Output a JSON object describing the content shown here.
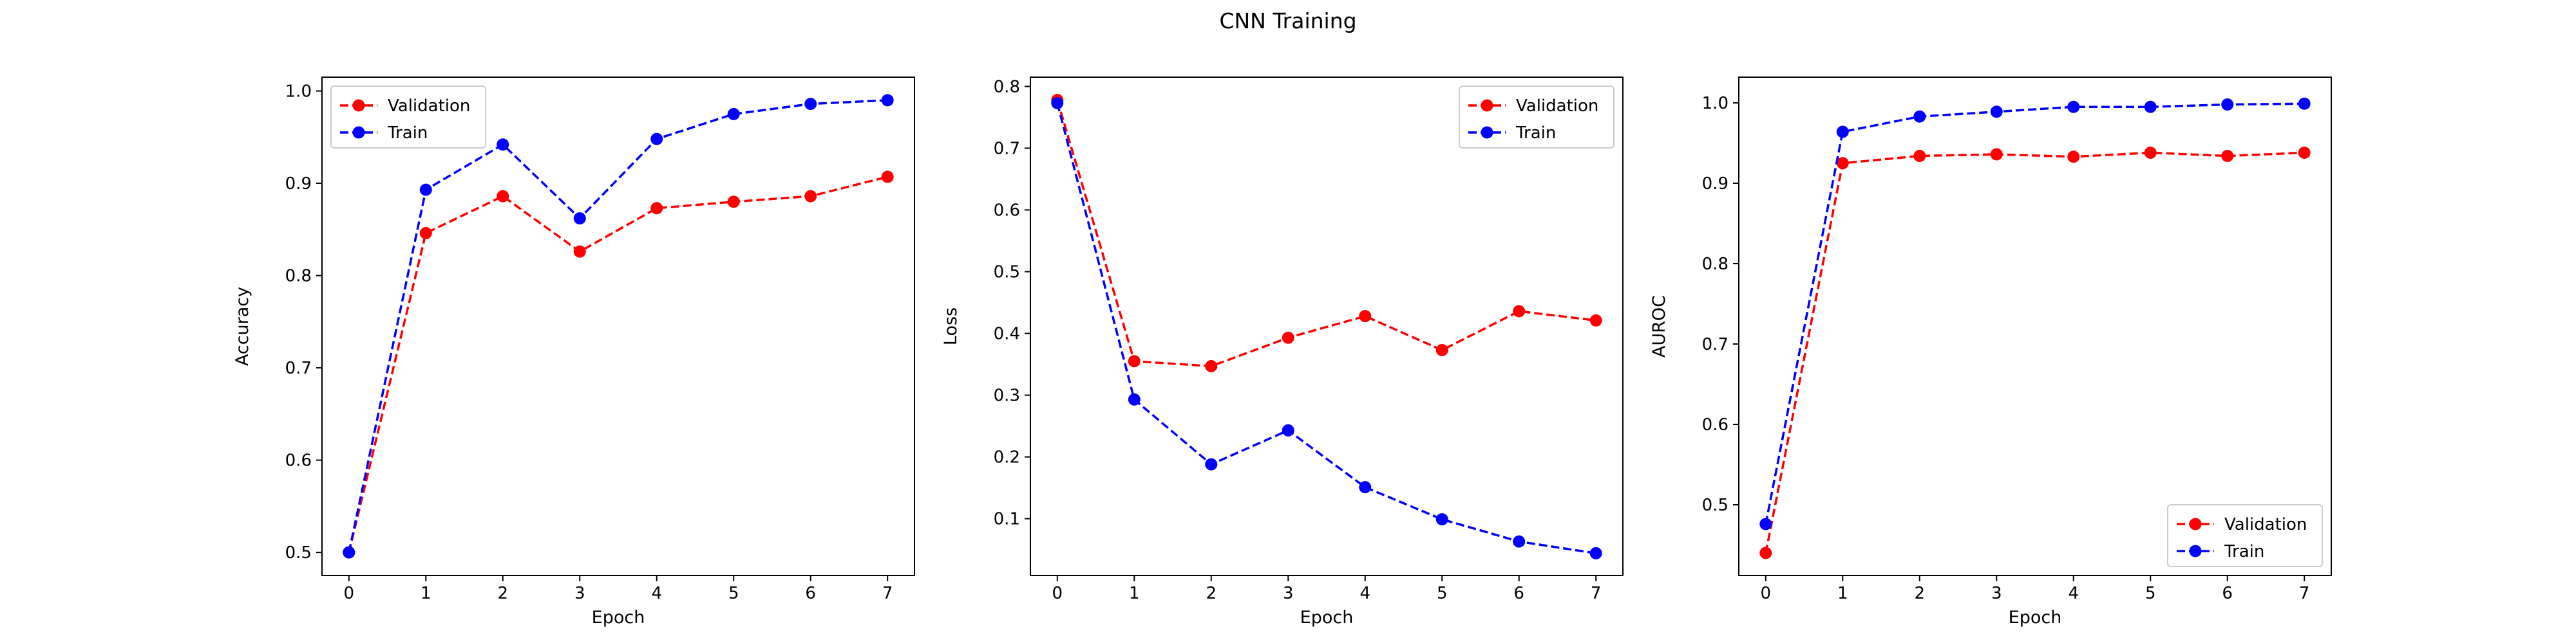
{
  "figure": {
    "title": "CNN Training"
  },
  "colors": {
    "validation": "#ff0000",
    "train": "#0000ff",
    "axes": "#000000"
  },
  "chart_data": [
    {
      "type": "line",
      "xlabel": "Epoch",
      "ylabel": "Accuracy",
      "x": [
        0,
        1,
        2,
        3,
        4,
        5,
        6,
        7
      ],
      "xlim": [
        -0.35,
        7.35
      ],
      "ylim": [
        0.475,
        1.015
      ],
      "xticks": [
        "0",
        "1",
        "2",
        "3",
        "4",
        "5",
        "6",
        "7"
      ],
      "yticks": [
        "0.5",
        "0.6",
        "0.7",
        "0.8",
        "0.9",
        "1.0"
      ],
      "yticks_values": [
        0.5,
        0.6,
        0.7,
        0.8,
        0.9,
        1.0
      ],
      "legend": "upper left",
      "series": [
        {
          "name": "Validation",
          "values": [
            0.5,
            0.846,
            0.886,
            0.826,
            0.873,
            0.88,
            0.886,
            0.907
          ]
        },
        {
          "name": "Train",
          "values": [
            0.5,
            0.893,
            0.942,
            0.862,
            0.948,
            0.975,
            0.986,
            0.99
          ]
        }
      ]
    },
    {
      "type": "line",
      "xlabel": "Epoch",
      "ylabel": "Loss",
      "x": [
        0,
        1,
        2,
        3,
        4,
        5,
        6,
        7
      ],
      "xlim": [
        -0.35,
        7.35
      ],
      "ylim": [
        0.008,
        0.815
      ],
      "xticks": [
        "0",
        "1",
        "2",
        "3",
        "4",
        "5",
        "6",
        "7"
      ],
      "yticks": [
        "0.1",
        "0.2",
        "0.3",
        "0.4",
        "0.5",
        "0.6",
        "0.7",
        "0.8"
      ],
      "yticks_values": [
        0.1,
        0.2,
        0.3,
        0.4,
        0.5,
        0.6,
        0.7,
        0.8
      ],
      "legend": "upper right",
      "series": [
        {
          "name": "Validation",
          "values": [
            0.778,
            0.355,
            0.347,
            0.393,
            0.428,
            0.373,
            0.436,
            0.421
          ]
        },
        {
          "name": "Train",
          "values": [
            0.773,
            0.293,
            0.188,
            0.243,
            0.151,
            0.099,
            0.063,
            0.044
          ]
        }
      ]
    },
    {
      "type": "line",
      "xlabel": "Epoch",
      "ylabel": "AUROC",
      "x": [
        0,
        1,
        2,
        3,
        4,
        5,
        6,
        7
      ],
      "xlim": [
        -0.35,
        7.35
      ],
      "ylim": [
        0.412,
        1.032
      ],
      "xticks": [
        "0",
        "1",
        "2",
        "3",
        "4",
        "5",
        "6",
        "7"
      ],
      "yticks": [
        "0.5",
        "0.6",
        "0.7",
        "0.8",
        "0.9",
        "1.0"
      ],
      "yticks_values": [
        0.5,
        0.6,
        0.7,
        0.8,
        0.9,
        1.0
      ],
      "legend": "lower right",
      "series": [
        {
          "name": "Validation",
          "values": [
            0.44,
            0.925,
            0.934,
            0.936,
            0.933,
            0.938,
            0.934,
            0.938
          ]
        },
        {
          "name": "Train",
          "values": [
            0.476,
            0.964,
            0.983,
            0.989,
            0.995,
            0.995,
            0.998,
            0.999
          ]
        }
      ]
    }
  ]
}
